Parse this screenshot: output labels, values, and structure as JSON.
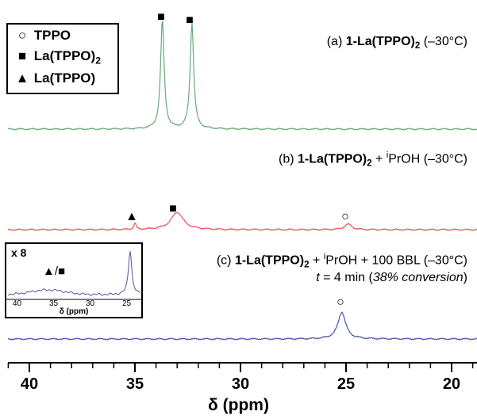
{
  "chart_data": {
    "type": "line",
    "xlabel": "δ (ppm)",
    "xlim": [
      41.3,
      19.0
    ],
    "xticks": [
      "40",
      "35",
      "30",
      "25",
      "20"
    ],
    "legend": [
      {
        "symbol": "○",
        "label": "TPPO"
      },
      {
        "symbol": "■",
        "label": "La(TPPO)",
        "sub": "2"
      },
      {
        "symbol": "▲",
        "label": "La(TPPO)"
      }
    ],
    "spectra": [
      {
        "color": "#6aa97a",
        "label": {
          "prefix": "(a) ",
          "bold": "1-La(TPPO)",
          "sub": "2",
          "rest": " (–30°C)"
        },
        "peaks": [
          {
            "ppm": 33.7,
            "marker": "■"
          },
          {
            "ppm": 32.3,
            "marker": "■"
          }
        ]
      },
      {
        "color": "#e8585e",
        "label": {
          "prefix": "(b) ",
          "bold": "1-La(TPPO)",
          "sub": "2",
          "plus": " + ",
          "sup": "i",
          "rest": "PrOH (–30°C)"
        },
        "peaks": [
          {
            "ppm": 35.0,
            "marker": "▲"
          },
          {
            "ppm": 33.0,
            "marker": "■"
          },
          {
            "ppm": 24.9,
            "marker": "○"
          }
        ]
      },
      {
        "color": "#4a55a8",
        "label": {
          "prefix": "(c) ",
          "bold": "1-La(TPPO)",
          "sub": "2",
          "plus": " + ",
          "sup": "i",
          "rest": "PrOH + 100 BBL (–30°C)"
        },
        "label2": {
          "t_var": "t",
          "t_eq": " = 4 min (",
          "conv": "38% conversion",
          "close": ")"
        },
        "peaks": [
          {
            "ppm": 25.2,
            "marker": "○"
          }
        ]
      }
    ],
    "inset": {
      "title": "x 8",
      "marker": "▲/■",
      "xticks": [
        "40",
        "35",
        "30",
        "25"
      ],
      "xlabel": "δ (ppm)",
      "xlim": [
        40.5,
        24.0
      ]
    }
  }
}
